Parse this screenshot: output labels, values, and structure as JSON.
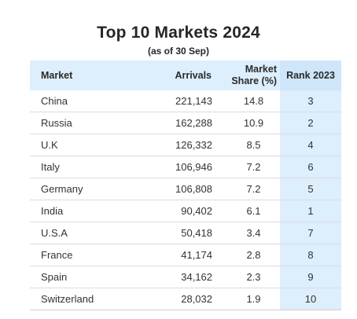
{
  "title": "Top 10 Markets 2024",
  "subtitle": "(as of 30 Sep)",
  "columns": {
    "market": "Market",
    "arrivals": "Arrivals",
    "share_line1": "Market",
    "share_line2": "Share (%)",
    "rank": "Rank 2023"
  },
  "rows": [
    {
      "market": "China",
      "arrivals": "221,143",
      "share": "14.8",
      "rank": "3"
    },
    {
      "market": "Russia",
      "arrivals": "162,288",
      "share": "10.9",
      "rank": "2"
    },
    {
      "market": "U.K",
      "arrivals": "126,332",
      "share": "8.5",
      "rank": "4"
    },
    {
      "market": "Italy",
      "arrivals": "106,946",
      "share": "7.2",
      "rank": "6"
    },
    {
      "market": "Germany",
      "arrivals": "106,808",
      "share": "7.2",
      "rank": "5"
    },
    {
      "market": "India",
      "arrivals": "90,402",
      "share": "6.1",
      "rank": "1"
    },
    {
      "market": "U.S.A",
      "arrivals": "50,418",
      "share": "3.4",
      "rank": "7"
    },
    {
      "market": "France",
      "arrivals": "41,174",
      "share": "2.8",
      "rank": "8"
    },
    {
      "market": "Spain",
      "arrivals": "34,162",
      "share": "2.3",
      "rank": "9"
    },
    {
      "market": "Switzerland",
      "arrivals": "28,032",
      "share": "1.9",
      "rank": "10"
    }
  ],
  "colors": {
    "header_bg": "#ddeefc",
    "rank_column_bg": "#ddeefc",
    "row_divider": "#dcdcdc"
  }
}
